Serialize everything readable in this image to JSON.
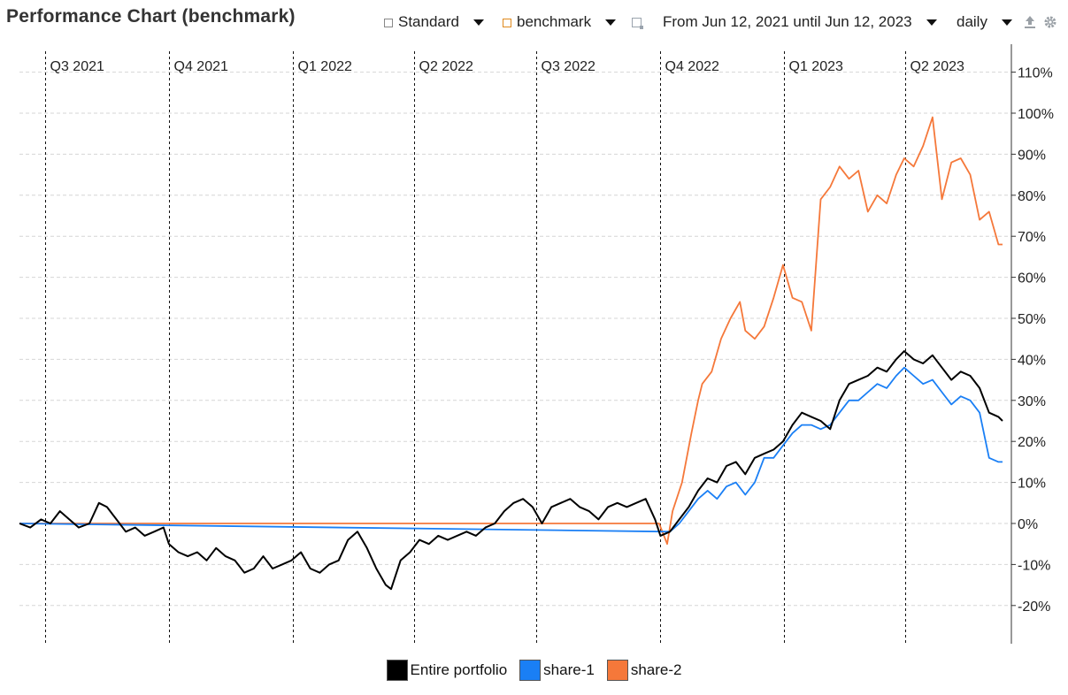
{
  "header": {
    "title": "Performance Chart (benchmark)",
    "view_select": "Standard",
    "benchmark_select": "benchmark",
    "date_range": "From Jun 12, 2021 until Jun 12, 2023",
    "interval": "daily",
    "icons": [
      "square-icon",
      "chevron-down-icon",
      "square-icon",
      "chevron-down-icon",
      "calendar-icon",
      "chevron-down-icon",
      "chevron-down-icon",
      "export-icon",
      "gear-icon"
    ]
  },
  "chart_data": {
    "type": "line",
    "x_start": "Jun 12, 2021",
    "x_end": "Jun 12, 2023",
    "quarters": [
      {
        "label": "Q3 2021",
        "date": "2021-07-01"
      },
      {
        "label": "Q4 2021",
        "date": "2021-10-01"
      },
      {
        "label": "Q1 2022",
        "date": "2022-01-01"
      },
      {
        "label": "Q2 2022",
        "date": "2022-04-01"
      },
      {
        "label": "Q3 2022",
        "date": "2022-07-01"
      },
      {
        "label": "Q4 2022",
        "date": "2022-10-01"
      },
      {
        "label": "Q1 2023",
        "date": "2023-01-01"
      },
      {
        "label": "Q2 2023",
        "date": "2023-04-01"
      }
    ],
    "ylim": [
      -30,
      115
    ],
    "yticks": [
      -20,
      -10,
      0,
      10,
      20,
      30,
      40,
      50,
      60,
      70,
      80,
      90,
      100,
      110
    ],
    "ytick_labels": [
      "-20%",
      "-10%",
      "0%",
      "10%",
      "20%",
      "30%",
      "40%",
      "50%",
      "60%",
      "70%",
      "80%",
      "90%",
      "100%",
      "110%"
    ],
    "grid": true,
    "legend": "bottom-center",
    "series": [
      {
        "name": "Entire portfolio",
        "color": "#000000",
        "points": [
          [
            "2021-06-12",
            0
          ],
          [
            "2021-06-20",
            -1
          ],
          [
            "2021-06-28",
            1
          ],
          [
            "2021-07-05",
            0
          ],
          [
            "2021-07-12",
            3
          ],
          [
            "2021-07-19",
            1
          ],
          [
            "2021-07-26",
            -1
          ],
          [
            "2021-08-03",
            0
          ],
          [
            "2021-08-10",
            5
          ],
          [
            "2021-08-16",
            4
          ],
          [
            "2021-08-23",
            1
          ],
          [
            "2021-08-30",
            -2
          ],
          [
            "2021-09-06",
            -1
          ],
          [
            "2021-09-13",
            -3
          ],
          [
            "2021-09-20",
            -2
          ],
          [
            "2021-09-27",
            -1
          ],
          [
            "2021-10-01",
            -5
          ],
          [
            "2021-10-08",
            -7
          ],
          [
            "2021-10-15",
            -8
          ],
          [
            "2021-10-22",
            -7
          ],
          [
            "2021-10-29",
            -9
          ],
          [
            "2021-11-05",
            -6
          ],
          [
            "2021-11-12",
            -8
          ],
          [
            "2021-11-19",
            -9
          ],
          [
            "2021-11-26",
            -12
          ],
          [
            "2021-12-03",
            -11
          ],
          [
            "2021-12-10",
            -8
          ],
          [
            "2021-12-17",
            -11
          ],
          [
            "2021-12-24",
            -10
          ],
          [
            "2021-12-31",
            -9
          ],
          [
            "2022-01-07",
            -7
          ],
          [
            "2022-01-14",
            -11
          ],
          [
            "2022-01-21",
            -12
          ],
          [
            "2022-01-28",
            -10
          ],
          [
            "2022-02-04",
            -9
          ],
          [
            "2022-02-11",
            -4
          ],
          [
            "2022-02-18",
            -2
          ],
          [
            "2022-02-25",
            -6
          ],
          [
            "2022-03-04",
            -11
          ],
          [
            "2022-03-11",
            -15
          ],
          [
            "2022-03-15",
            -16
          ],
          [
            "2022-03-22",
            -9
          ],
          [
            "2022-03-29",
            -7
          ],
          [
            "2022-04-05",
            -4
          ],
          [
            "2022-04-12",
            -5
          ],
          [
            "2022-04-19",
            -3
          ],
          [
            "2022-04-26",
            -4
          ],
          [
            "2022-05-03",
            -3
          ],
          [
            "2022-05-10",
            -2
          ],
          [
            "2022-05-17",
            -3
          ],
          [
            "2022-05-24",
            -1
          ],
          [
            "2022-05-31",
            0
          ],
          [
            "2022-06-07",
            3
          ],
          [
            "2022-06-14",
            5
          ],
          [
            "2022-06-21",
            6
          ],
          [
            "2022-06-28",
            4
          ],
          [
            "2022-07-05",
            0
          ],
          [
            "2022-07-12",
            4
          ],
          [
            "2022-07-19",
            5
          ],
          [
            "2022-07-26",
            6
          ],
          [
            "2022-08-02",
            4
          ],
          [
            "2022-08-09",
            3
          ],
          [
            "2022-08-16",
            1
          ],
          [
            "2022-08-23",
            4
          ],
          [
            "2022-08-30",
            5
          ],
          [
            "2022-09-06",
            4
          ],
          [
            "2022-09-13",
            5
          ],
          [
            "2022-09-20",
            6
          ],
          [
            "2022-09-27",
            1
          ],
          [
            "2022-10-01",
            -3
          ],
          [
            "2022-10-08",
            -2
          ],
          [
            "2022-10-15",
            1
          ],
          [
            "2022-10-22",
            4
          ],
          [
            "2022-10-29",
            8
          ],
          [
            "2022-11-05",
            11
          ],
          [
            "2022-11-12",
            10
          ],
          [
            "2022-11-19",
            14
          ],
          [
            "2022-11-26",
            15
          ],
          [
            "2022-12-03",
            12
          ],
          [
            "2022-12-10",
            16
          ],
          [
            "2022-12-17",
            17
          ],
          [
            "2022-12-24",
            18
          ],
          [
            "2022-12-31",
            20
          ],
          [
            "2023-01-07",
            24
          ],
          [
            "2023-01-14",
            27
          ],
          [
            "2023-01-21",
            26
          ],
          [
            "2023-01-28",
            25
          ],
          [
            "2023-02-04",
            23
          ],
          [
            "2023-02-11",
            30
          ],
          [
            "2023-02-18",
            34
          ],
          [
            "2023-02-25",
            35
          ],
          [
            "2023-03-04",
            36
          ],
          [
            "2023-03-11",
            38
          ],
          [
            "2023-03-18",
            37
          ],
          [
            "2023-03-25",
            40
          ],
          [
            "2023-03-31",
            42
          ],
          [
            "2023-04-07",
            40
          ],
          [
            "2023-04-14",
            39
          ],
          [
            "2023-04-21",
            41
          ],
          [
            "2023-04-28",
            38
          ],
          [
            "2023-05-05",
            35
          ],
          [
            "2023-05-12",
            37
          ],
          [
            "2023-05-19",
            36
          ],
          [
            "2023-05-26",
            33
          ],
          [
            "2023-06-02",
            27
          ],
          [
            "2023-06-09",
            26
          ],
          [
            "2023-06-12",
            25
          ]
        ]
      },
      {
        "name": "share-1",
        "color": "#1a7ff5",
        "points": [
          [
            "2021-06-12",
            0
          ],
          [
            "2022-10-08",
            -2
          ],
          [
            "2022-10-15",
            0
          ],
          [
            "2022-10-22",
            3
          ],
          [
            "2022-10-29",
            6
          ],
          [
            "2022-11-05",
            8
          ],
          [
            "2022-11-12",
            6
          ],
          [
            "2022-11-19",
            9
          ],
          [
            "2022-11-26",
            10
          ],
          [
            "2022-12-03",
            7
          ],
          [
            "2022-12-10",
            10
          ],
          [
            "2022-12-17",
            16
          ],
          [
            "2022-12-24",
            16
          ],
          [
            "2022-12-31",
            19
          ],
          [
            "2023-01-07",
            22
          ],
          [
            "2023-01-14",
            24
          ],
          [
            "2023-01-21",
            24
          ],
          [
            "2023-01-28",
            23
          ],
          [
            "2023-02-04",
            24
          ],
          [
            "2023-02-11",
            27
          ],
          [
            "2023-02-18",
            30
          ],
          [
            "2023-02-25",
            30
          ],
          [
            "2023-03-04",
            32
          ],
          [
            "2023-03-11",
            34
          ],
          [
            "2023-03-18",
            33
          ],
          [
            "2023-03-25",
            36
          ],
          [
            "2023-03-31",
            38
          ],
          [
            "2023-04-07",
            36
          ],
          [
            "2023-04-14",
            34
          ],
          [
            "2023-04-21",
            35
          ],
          [
            "2023-04-28",
            32
          ],
          [
            "2023-05-05",
            29
          ],
          [
            "2023-05-12",
            31
          ],
          [
            "2023-05-19",
            30
          ],
          [
            "2023-05-26",
            27
          ],
          [
            "2023-06-02",
            16
          ],
          [
            "2023-06-09",
            15
          ],
          [
            "2023-06-12",
            15
          ]
        ]
      },
      {
        "name": "share-2",
        "color": "#f5783a",
        "points": [
          [
            "2021-06-12",
            0
          ],
          [
            "2022-09-30",
            0
          ],
          [
            "2022-10-06",
            -5
          ],
          [
            "2022-10-10",
            3
          ],
          [
            "2022-10-17",
            10
          ],
          [
            "2022-10-24",
            22
          ],
          [
            "2022-10-29",
            30
          ],
          [
            "2022-11-01",
            34
          ],
          [
            "2022-11-08",
            37
          ],
          [
            "2022-11-15",
            45
          ],
          [
            "2022-11-22",
            50
          ],
          [
            "2022-11-29",
            54
          ],
          [
            "2022-12-03",
            47
          ],
          [
            "2022-12-10",
            45
          ],
          [
            "2022-12-17",
            48
          ],
          [
            "2022-12-24",
            55
          ],
          [
            "2022-12-31",
            63
          ],
          [
            "2023-01-07",
            55
          ],
          [
            "2023-01-14",
            54
          ],
          [
            "2023-01-21",
            47
          ],
          [
            "2023-01-28",
            79
          ],
          [
            "2023-02-04",
            82
          ],
          [
            "2023-02-11",
            87
          ],
          [
            "2023-02-18",
            84
          ],
          [
            "2023-02-25",
            86
          ],
          [
            "2023-03-04",
            76
          ],
          [
            "2023-03-11",
            80
          ],
          [
            "2023-03-18",
            78
          ],
          [
            "2023-03-25",
            85
          ],
          [
            "2023-03-31",
            89
          ],
          [
            "2023-04-07",
            87
          ],
          [
            "2023-04-14",
            92
          ],
          [
            "2023-04-21",
            99
          ],
          [
            "2023-04-28",
            79
          ],
          [
            "2023-05-05",
            88
          ],
          [
            "2023-05-12",
            89
          ],
          [
            "2023-05-19",
            85
          ],
          [
            "2023-05-26",
            74
          ],
          [
            "2023-06-02",
            76
          ],
          [
            "2023-06-09",
            68
          ],
          [
            "2023-06-12",
            68
          ]
        ]
      }
    ]
  }
}
